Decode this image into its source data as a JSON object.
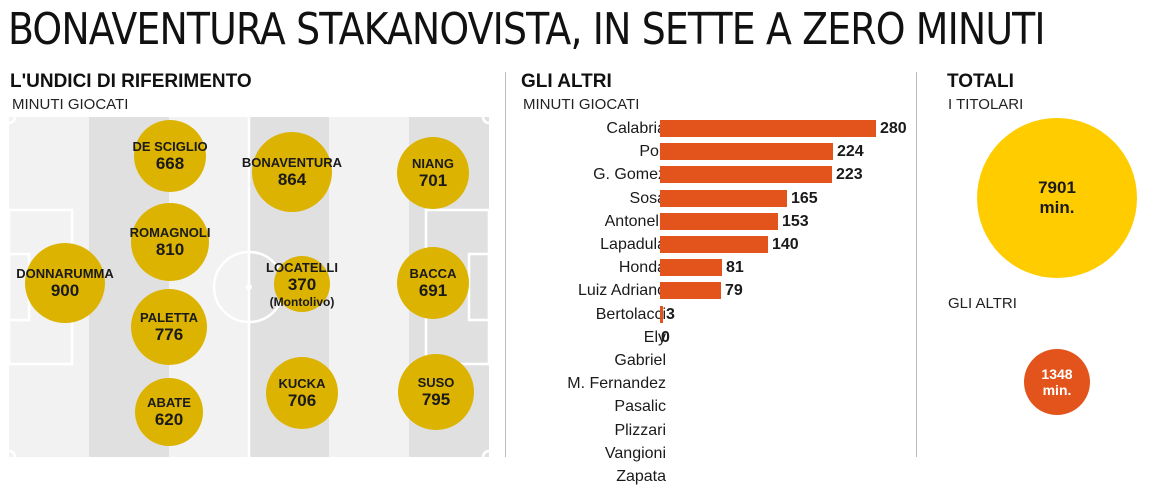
{
  "title": "BONAVENTURA STAKANOVISTA, IN SETTE A ZERO MINUTI",
  "colors": {
    "starters": "#dcb300",
    "others": "#e2541c",
    "total_starters": "#ffcc00"
  },
  "lineup": {
    "heading": "L'UNDICI DI RIFERIMENTO",
    "subheading": "MINUTI GIOCATI",
    "players": [
      {
        "name": "DONNARUMMA",
        "minutes": 900
      },
      {
        "name": "DE SCIGLIO",
        "minutes": 668
      },
      {
        "name": "ROMAGNOLI",
        "minutes": 810
      },
      {
        "name": "PALETTA",
        "minutes": 776
      },
      {
        "name": "ABATE",
        "minutes": 620
      },
      {
        "name": "BONAVENTURA",
        "minutes": 864
      },
      {
        "name": "LOCATELLI",
        "minutes": 370,
        "note": "(Montolivo)"
      },
      {
        "name": "KUCKA",
        "minutes": 706
      },
      {
        "name": "NIANG",
        "minutes": 701
      },
      {
        "name": "BACCA",
        "minutes": 691
      },
      {
        "name": "SUSO",
        "minutes": 795
      }
    ]
  },
  "others": {
    "heading": "GLI ALTRI",
    "subheading": "MINUTI GIOCATI"
  },
  "totals": {
    "heading": "TOTALI",
    "starters_label": "I TITOLARI",
    "starters_value": "7901",
    "starters_unit": "min.",
    "others_label": "GLI ALTRI",
    "others_value": "1348",
    "others_unit": "min."
  },
  "chart_data": {
    "type": "bar",
    "orientation": "horizontal",
    "subtitle": "MINUTI GIOCATI",
    "categories": [
      "Calabria",
      "Poli",
      "G. Gomez",
      "Sosa",
      "Antonelli",
      "Lapadula",
      "Honda",
      "Luiz Adriano",
      "Bertolacci",
      "Ely",
      "Gabriel",
      "M. Fernandez",
      "Pasalic",
      "Plizzari",
      "Vangioni",
      "Zapata"
    ],
    "values": [
      280,
      224,
      223,
      165,
      153,
      140,
      81,
      79,
      3,
      0,
      null,
      null,
      null,
      null,
      null,
      null
    ],
    "xlim": [
      0,
      280
    ]
  }
}
